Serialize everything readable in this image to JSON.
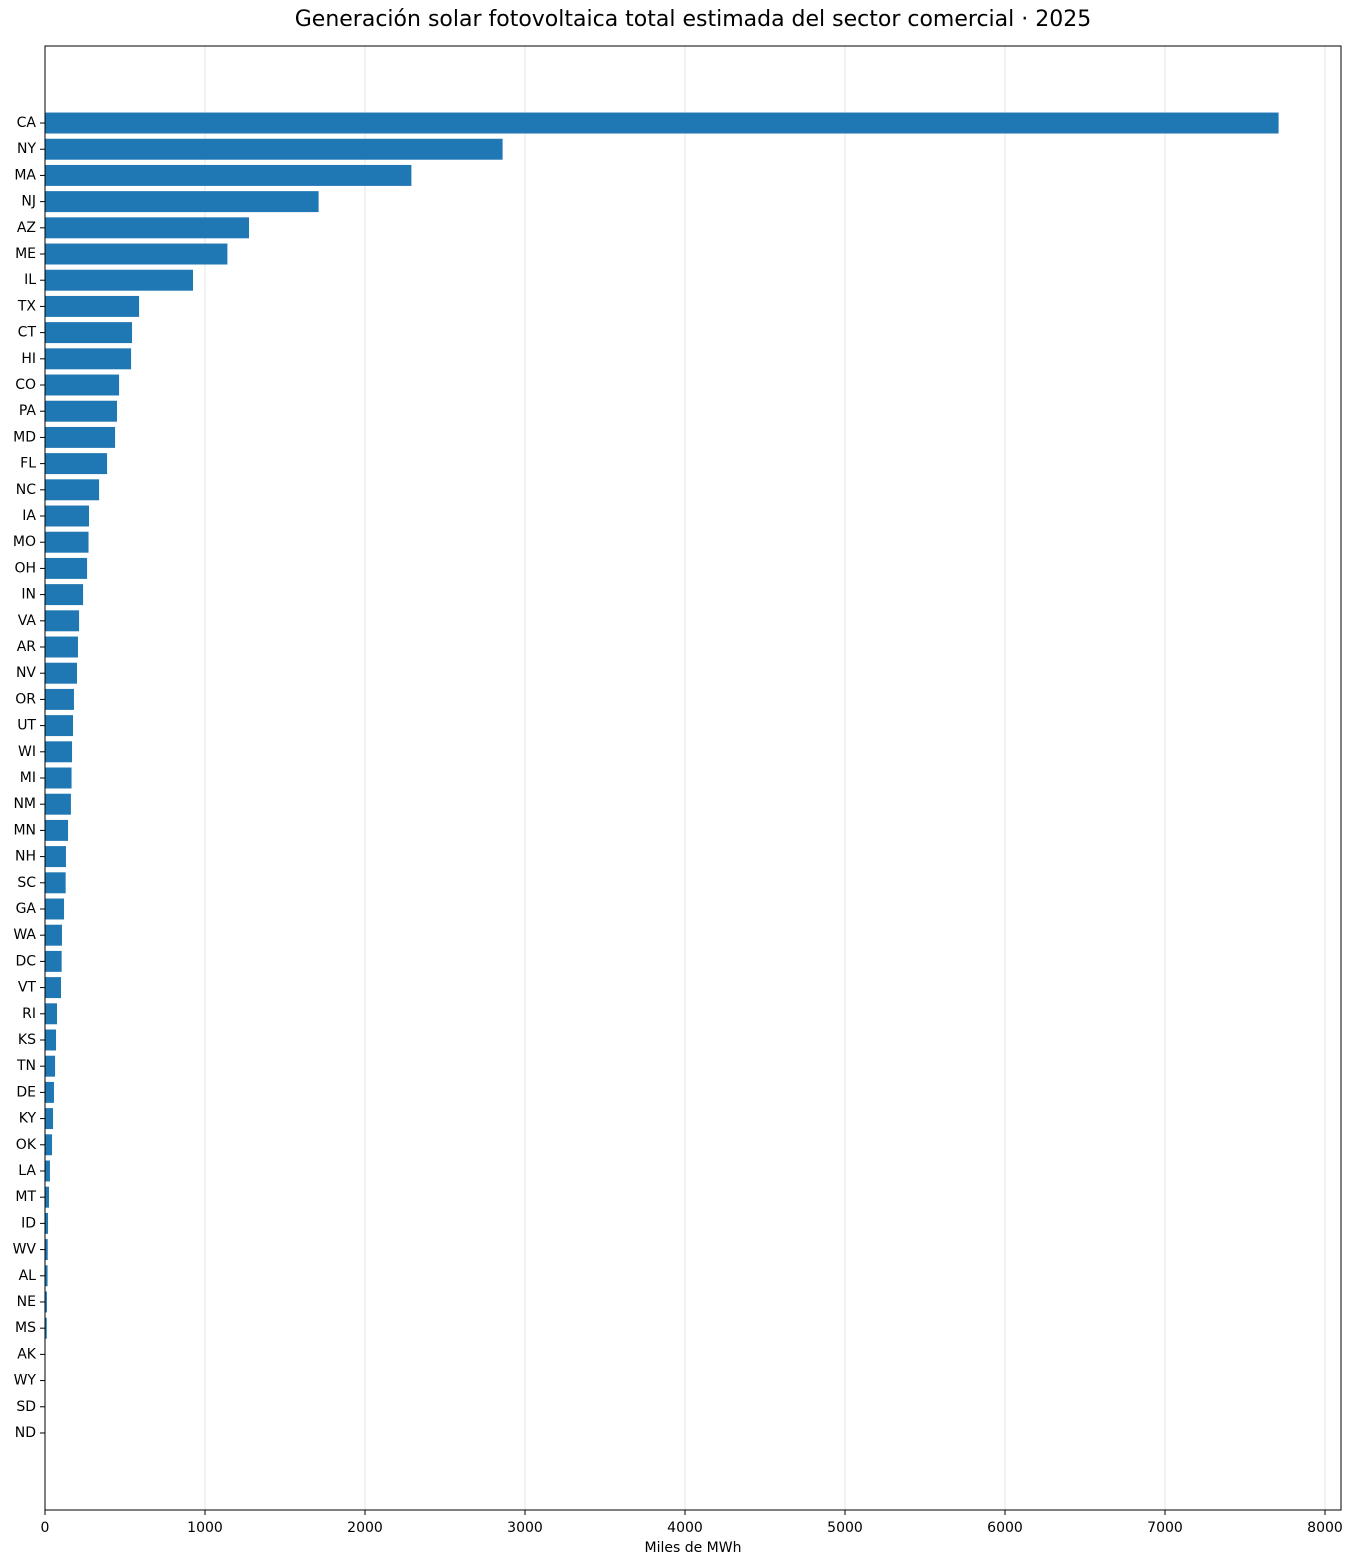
{
  "chart_data": {
    "type": "barh",
    "title": "Generación solar fotovoltaica total estimada del sector comercial · 2025",
    "x_label": "Miles de MWh",
    "categories": [
      "CA",
      "NY",
      "MA",
      "NJ",
      "AZ",
      "ME",
      "IL",
      "TX",
      "CT",
      "HI",
      "CO",
      "PA",
      "MD",
      "FL",
      "NC",
      "IA",
      "MO",
      "OH",
      "IN",
      "VA",
      "AR",
      "NV",
      "OR",
      "UT",
      "WI",
      "MI",
      "NM",
      "MN",
      "NH",
      "SC",
      "GA",
      "WA",
      "DC",
      "VT",
      "RI",
      "KS",
      "TN",
      "DE",
      "KY",
      "OK",
      "LA",
      "MT",
      "ID",
      "WV",
      "AL",
      "NE",
      "MS",
      "AK",
      "WY",
      "SD",
      "ND"
    ],
    "values": [
      7710,
      2860,
      2290,
      1710,
      1275,
      1140,
      925,
      588,
      544,
      538,
      463,
      450,
      438,
      388,
      338,
      275,
      272,
      263,
      238,
      213,
      206,
      200,
      181,
      175,
      169,
      166,
      162,
      144,
      131,
      129,
      119,
      106,
      104,
      100,
      75,
      69,
      63,
      56,
      50,
      44,
      31,
      25,
      19,
      17,
      16,
      12,
      11,
      3,
      1,
      0.5,
      0.3
    ],
    "color": "#1f77b4",
    "xlim": [
      0,
      8100
    ],
    "xticks": [
      0,
      1000,
      2000,
      3000,
      4000,
      5000,
      6000,
      7000,
      8000
    ],
    "grid": true
  }
}
